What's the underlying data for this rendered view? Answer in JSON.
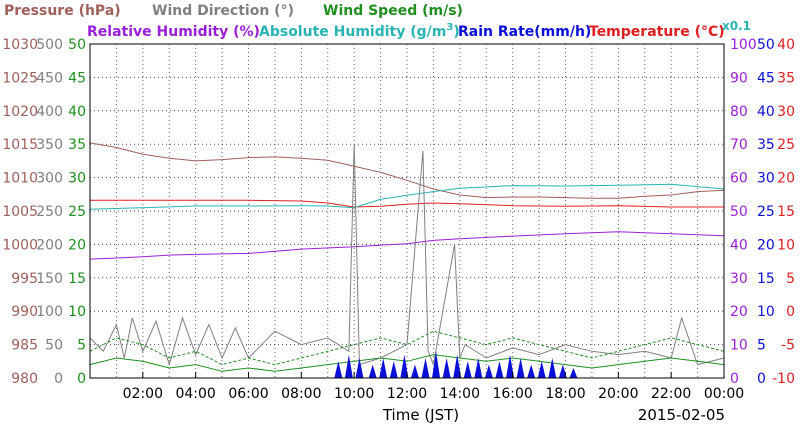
{
  "legend_row1": {
    "pressure": "Pressure (hPa)",
    "wind_direction": "Wind Direction (°)",
    "wind_speed": "Wind Speed (m/s)"
  },
  "legend_row2": {
    "relative_humidity": "Relative Humidity (%)",
    "absolute_humidity": "Absolute Humidity (g/m",
    "absolute_humidity_sup": "3",
    "absolute_humidity_close": ")",
    "rain_rate": "Rain Rate(mm/h)",
    "temperature": "Temperature (°C)",
    "scale_note": "x0.1"
  },
  "xaxis": {
    "label": "Time (JST)",
    "date": "2015-02-05",
    "ticks": [
      "02:00",
      "04:00",
      "06:00",
      "08:00",
      "10:00",
      "12:00",
      "14:00",
      "16:00",
      "18:00",
      "20:00",
      "22:00",
      "00:00"
    ]
  },
  "colors": {
    "pressure": "#a0605a",
    "wind_direction": "#808080",
    "wind_speed": "#1f8f1f",
    "relative_humidity": "#9a20d8",
    "absolute_humidity": "#28b4b4",
    "rain_rate": "#0a10d8",
    "temperature": "#e02020"
  },
  "chart_data": {
    "type": "line",
    "x_unit": "hours (JST)",
    "xlim": [
      0,
      24
    ],
    "axes": {
      "pressure": {
        "ticks": [
          980,
          985,
          990,
          995,
          1000,
          1005,
          1010,
          1015,
          1020,
          1025,
          1030
        ],
        "ylim": [
          980,
          1030
        ]
      },
      "wind_direction": {
        "ticks": [
          0,
          50,
          100,
          150,
          200,
          250,
          300,
          350,
          400,
          450,
          500
        ],
        "ylim": [
          0,
          500
        ]
      },
      "wind_speed": {
        "ticks": [
          0,
          5,
          10,
          15,
          20,
          25,
          30,
          35,
          40,
          45,
          50
        ],
        "ylim": [
          0,
          50
        ]
      },
      "relative_humidity": {
        "ticks": [
          0,
          10,
          20,
          30,
          40,
          50,
          60,
          70,
          80,
          90,
          100
        ],
        "ylim": [
          0,
          100
        ]
      },
      "rain_rate": {
        "ticks": [
          0,
          5,
          10,
          15,
          20,
          25,
          30,
          35,
          40,
          45,
          50
        ],
        "ylim": [
          0,
          50
        ]
      },
      "temperature": {
        "ticks": [
          -10,
          -5,
          0,
          5,
          10,
          15,
          20,
          25,
          30,
          35,
          40
        ],
        "ylim": [
          -10,
          40
        ]
      }
    },
    "series": [
      {
        "name": "Pressure (hPa)",
        "axis": "pressure",
        "x": [
          0,
          1,
          2,
          3,
          4,
          5,
          6,
          7,
          8,
          9,
          10,
          11,
          12,
          13,
          14,
          15,
          16,
          17,
          18,
          19,
          20,
          21,
          22,
          23,
          24
        ],
        "y": [
          1015.2,
          1014.5,
          1013.5,
          1012.9,
          1012.5,
          1012.7,
          1013.0,
          1013.1,
          1012.9,
          1012.6,
          1011.7,
          1010.8,
          1009.6,
          1008.3,
          1007.4,
          1007.0,
          1007.1,
          1007.1,
          1007.0,
          1006.9,
          1006.9,
          1007.2,
          1007.4,
          1007.9,
          1008.1
        ]
      },
      {
        "name": "Temperature (°C)",
        "axis": "temperature",
        "x": [
          0,
          2,
          4,
          6,
          8,
          9,
          10,
          11,
          12,
          13,
          14,
          16,
          18,
          20,
          22,
          24
        ],
        "y": [
          16.6,
          16.6,
          16.6,
          16.6,
          16.5,
          16.2,
          15.6,
          15.7,
          16.0,
          16.2,
          16.1,
          15.8,
          15.7,
          15.8,
          15.6,
          15.6
        ]
      },
      {
        "name": "Absolute Humidity (g/m3) x0.1",
        "axis": "relative_humidity",
        "x": [
          0,
          2,
          4,
          6,
          8,
          9,
          10,
          11,
          12,
          13,
          14,
          16,
          18,
          20,
          22,
          24
        ],
        "y": [
          50.5,
          51.0,
          51.5,
          51.5,
          51.6,
          51.5,
          51.0,
          53.5,
          54.7,
          55.8,
          56.8,
          57.6,
          57.5,
          57.7,
          58.0,
          56.6
        ]
      },
      {
        "name": "Relative Humidity (%)",
        "axis": "relative_humidity",
        "x": [
          0,
          2,
          3,
          4,
          6,
          8,
          10,
          12,
          13,
          14,
          16,
          18,
          20,
          22,
          24
        ],
        "y": [
          35.6,
          36.3,
          36.8,
          37.0,
          37.3,
          38.6,
          39.3,
          40.2,
          41.2,
          41.7,
          42.5,
          43.2,
          43.8,
          43.2,
          42.6
        ]
      },
      {
        "name": "Wind Direction (°)",
        "axis": "wind_direction",
        "x": [
          0,
          0.5,
          1,
          1.3,
          1.6,
          2,
          2.5,
          3,
          3.5,
          4,
          4.5,
          5,
          5.5,
          6,
          7,
          8,
          9,
          9.8,
          10.0,
          10.2,
          11,
          12,
          12.6,
          12.8,
          13,
          13.8,
          14.0,
          14.2,
          15,
          16,
          17,
          18,
          19,
          20,
          21,
          22,
          22.4,
          23,
          24
        ],
        "y": [
          60,
          40,
          80,
          30,
          90,
          40,
          85,
          20,
          90,
          35,
          80,
          30,
          75,
          30,
          70,
          50,
          60,
          40,
          350,
          20,
          30,
          50,
          340,
          40,
          20,
          200,
          30,
          50,
          30,
          45,
          35,
          50,
          40,
          35,
          40,
          30,
          90,
          20,
          30
        ]
      },
      {
        "name": "Wind Speed (m/s) max",
        "axis": "wind_speed",
        "style": "dashed",
        "x": [
          0,
          1,
          2,
          3,
          4,
          5,
          6,
          7,
          8,
          9,
          10,
          11,
          12,
          13,
          14,
          15,
          16,
          17,
          18,
          19,
          20,
          21,
          22,
          23,
          24
        ],
        "y": [
          4,
          6,
          5,
          3,
          4,
          2,
          3,
          2,
          3,
          4,
          5,
          6,
          5,
          7,
          6,
          5,
          6,
          5,
          4,
          3,
          4,
          5,
          6,
          5,
          4
        ]
      },
      {
        "name": "Wind Speed (m/s) avg",
        "axis": "wind_speed",
        "style": "solid",
        "x": [
          0,
          1,
          2,
          3,
          4,
          5,
          6,
          7,
          8,
          9,
          10,
          11,
          12,
          13,
          14,
          15,
          16,
          17,
          18,
          19,
          20,
          21,
          22,
          23,
          24
        ],
        "y": [
          2,
          3,
          2.5,
          1.5,
          2,
          1,
          1.5,
          1,
          1.5,
          2,
          2.5,
          3,
          2.5,
          3.5,
          3,
          2.5,
          3,
          2.5,
          2,
          1.5,
          2,
          2.5,
          3,
          2.5,
          2
        ]
      },
      {
        "name": "Rain Rate(mm/h)",
        "axis": "rain_rate",
        "style": "filled",
        "x": [
          9.4,
          9.8,
          10.2,
          10.7,
          11.1,
          11.5,
          11.9,
          12.3,
          12.7,
          13.1,
          13.5,
          13.9,
          14.3,
          14.7,
          15.1,
          15.5,
          15.9,
          16.3,
          16.7,
          17.1,
          17.5,
          17.9,
          18.3
        ],
        "y": [
          2.5,
          3.5,
          3.0,
          2.0,
          3.0,
          2.5,
          3.5,
          2.0,
          3.0,
          4.0,
          3.0,
          3.5,
          2.5,
          3.0,
          2.0,
          2.5,
          3.5,
          3.0,
          2.0,
          2.5,
          3.0,
          2.0,
          1.5
        ]
      }
    ]
  }
}
